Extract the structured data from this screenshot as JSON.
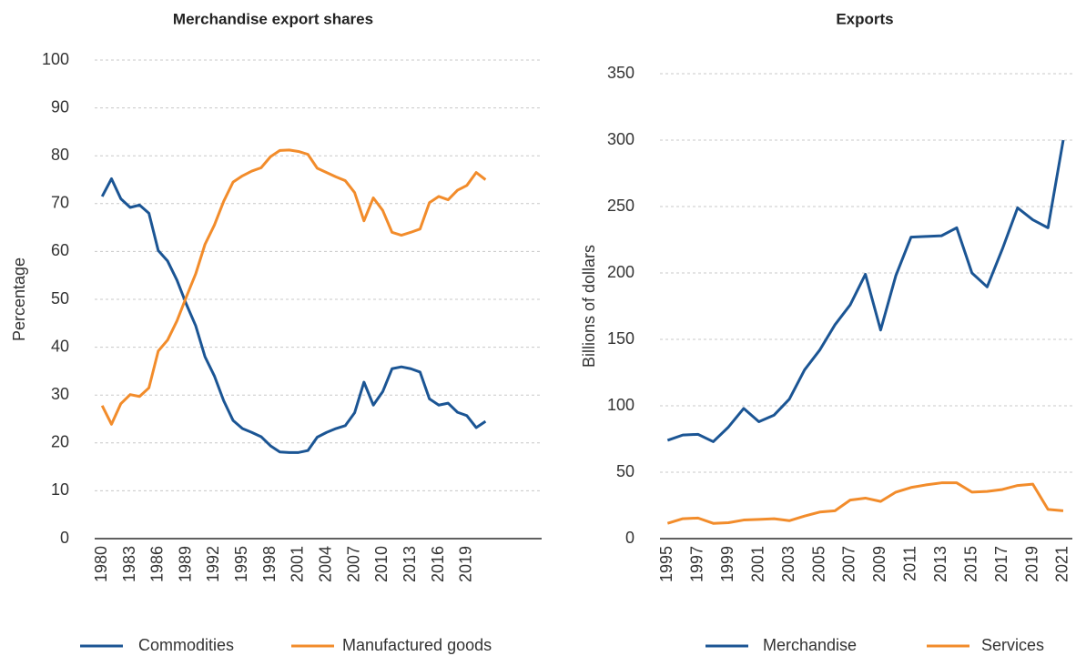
{
  "chart_data": [
    {
      "type": "line",
      "title": "Merchandise export shares",
      "y_label": "Percentage",
      "x": [
        1980,
        1981,
        1982,
        1983,
        1984,
        1985,
        1986,
        1987,
        1988,
        1989,
        1990,
        1991,
        1992,
        1993,
        1994,
        1995,
        1996,
        1997,
        1998,
        1999,
        2000,
        2001,
        2002,
        2003,
        2004,
        2005,
        2006,
        2007,
        2008,
        2009,
        2010,
        2011,
        2012,
        2013,
        2014,
        2015,
        2016,
        2017,
        2018,
        2019,
        2020,
        2021
      ],
      "series": [
        {
          "name": "Commodities",
          "color": "#1b5594",
          "values": [
            71.5,
            75.2,
            71,
            69.2,
            69.7,
            68,
            60.2,
            58,
            54,
            49,
            44.5,
            38,
            34,
            28.8,
            24.7,
            23,
            22.2,
            21.3,
            19.4,
            18.1,
            18,
            18,
            18.4,
            21.2,
            22.2,
            23,
            23.6,
            26.3,
            32.7,
            27.9,
            30.7,
            35.5,
            35.9,
            35.5,
            34.8,
            29.2,
            27.9,
            28.3,
            26.4,
            25.7,
            23.2,
            24.5
          ]
        },
        {
          "name": "Manufactured goods",
          "color": "#f28c2b",
          "values": [
            27.8,
            23.9,
            28.2,
            30.1,
            29.7,
            31.5,
            39.2,
            41.5,
            45.5,
            50.5,
            55.3,
            61.5,
            65.5,
            70.5,
            74.5,
            75.8,
            76.8,
            77.5,
            79.8,
            81.1,
            81.2,
            80.9,
            80.3,
            77.4,
            76.5,
            75.6,
            74.8,
            72.3,
            66.4,
            71.2,
            68.6,
            64,
            63.4,
            64,
            64.7,
            70.2,
            71.5,
            70.8,
            72.8,
            73.8,
            76.5,
            75
          ]
        }
      ],
      "xlim": [
        1979.2,
        2027
      ],
      "xticks": [
        1980,
        1983,
        1986,
        1989,
        1992,
        1995,
        1998,
        2001,
        2004,
        2007,
        2010,
        2013,
        2016,
        2019
      ],
      "ylim": [
        0,
        100
      ],
      "yticks": [
        0,
        10,
        20,
        30,
        40,
        50,
        60,
        70,
        80,
        90,
        100
      ],
      "grid": true,
      "legend": "bottom"
    },
    {
      "type": "line",
      "title": "Exports",
      "y_label": "Billions of dollars",
      "x": [
        1995,
        1996,
        1997,
        1998,
        1999,
        2000,
        2001,
        2002,
        2003,
        2004,
        2005,
        2006,
        2007,
        2008,
        2009,
        2010,
        2011,
        2012,
        2013,
        2014,
        2015,
        2016,
        2017,
        2018,
        2019,
        2020,
        2021
      ],
      "series": [
        {
          "name": "Merchandise",
          "color": "#1b5594",
          "values": [
            74,
            78,
            78.5,
            73,
            84,
            98,
            88,
            93,
            105,
            127,
            142,
            161,
            176,
            199,
            157,
            198,
            227,
            227.5,
            228,
            234,
            200,
            189.5,
            218,
            249,
            240,
            234,
            300
          ]
        },
        {
          "name": "Services",
          "color": "#f28c2b",
          "values": [
            11.5,
            15,
            15.5,
            11.5,
            12,
            14,
            14.5,
            15,
            13.5,
            17,
            20,
            21,
            29,
            30.5,
            28,
            35,
            38.5,
            40.5,
            42,
            42,
            35,
            35.5,
            37,
            40,
            41,
            22,
            21
          ]
        }
      ],
      "xlim": [
        1994.5,
        2021.6
      ],
      "xticks": [
        1995,
        1997,
        1999,
        2001,
        2003,
        2005,
        2007,
        2009,
        2011,
        2013,
        2015,
        2017,
        2019,
        2021
      ],
      "ylim": [
        0,
        350
      ],
      "yticks": [
        0,
        50,
        100,
        150,
        200,
        250,
        300,
        350
      ],
      "grid": true,
      "legend": "bottom"
    }
  ]
}
